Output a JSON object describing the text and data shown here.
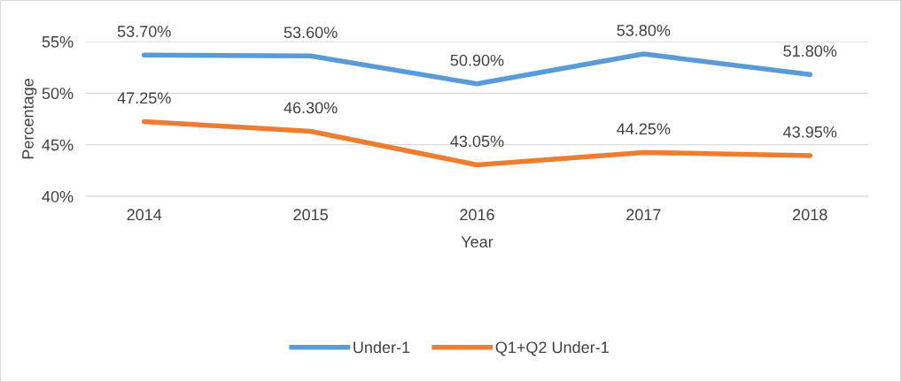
{
  "chart_data": {
    "type": "line",
    "xlabel": "Year",
    "ylabel": "Percentage",
    "categories": [
      "2014",
      "2015",
      "2016",
      "2017",
      "2018"
    ],
    "series": [
      {
        "name": "Under-1",
        "color": "#5b9bd5",
        "values": [
          53.7,
          53.6,
          50.9,
          53.8,
          51.8
        ],
        "value_labels": [
          "53.70%",
          "53.60%",
          "50.90%",
          "53.80%",
          "51.80%"
        ]
      },
      {
        "name": "Q1+Q2 Under-1",
        "color": "#ed7d31",
        "values": [
          47.25,
          46.3,
          43.05,
          44.25,
          43.95
        ],
        "value_labels": [
          "47.25%",
          "46.30%",
          "43.05%",
          "44.25%",
          "43.95%"
        ]
      }
    ],
    "ylim": [
      40,
      55
    ],
    "yticks": [
      {
        "value": 40,
        "label": "40%"
      },
      {
        "value": 45,
        "label": "45%"
      },
      {
        "value": 50,
        "label": "50%"
      },
      {
        "value": 55,
        "label": "55%"
      }
    ],
    "grid": "y",
    "legend": "bottom",
    "marker": "none",
    "line_style": "solid"
  }
}
